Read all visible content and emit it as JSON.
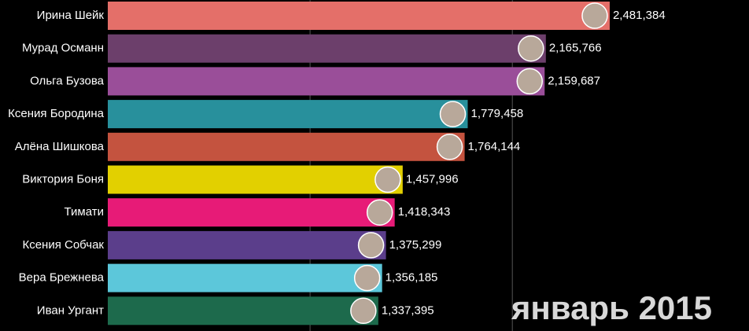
{
  "chart_data": {
    "type": "barh",
    "categories": [
      "Ирина Шейк",
      "Мурад Османн",
      "Ольга Бузова",
      "Ксения Бородина",
      "Алёна Шишкова",
      "Виктория Боня",
      "Тимати",
      "Ксения Собчак",
      "Вера Брежнева",
      "Иван Ургант"
    ],
    "values": [
      2481384,
      2165766,
      2159687,
      1779458,
      1764144,
      1457996,
      1418343,
      1375299,
      1356185,
      1337395
    ],
    "value_labels": [
      "2,481,384",
      "2,165,766",
      "2,159,687",
      "1,779,458",
      "1,764,144",
      "1,457,996",
      "1,418,343",
      "1,375,299",
      "1,356,185",
      "1,337,395"
    ],
    "colors": [
      "#e46f69",
      "#6c3f6b",
      "#9a4e99",
      "#28909c",
      "#c4533f",
      "#e2d000",
      "#e71b77",
      "#5b3e8b",
      "#5cc7da",
      "#1d6a4c"
    ],
    "xlim": [
      0,
      3170000
    ],
    "xticks": [
      1000000,
      2000000
    ],
    "grid": true,
    "annotation": "январь 2015"
  }
}
